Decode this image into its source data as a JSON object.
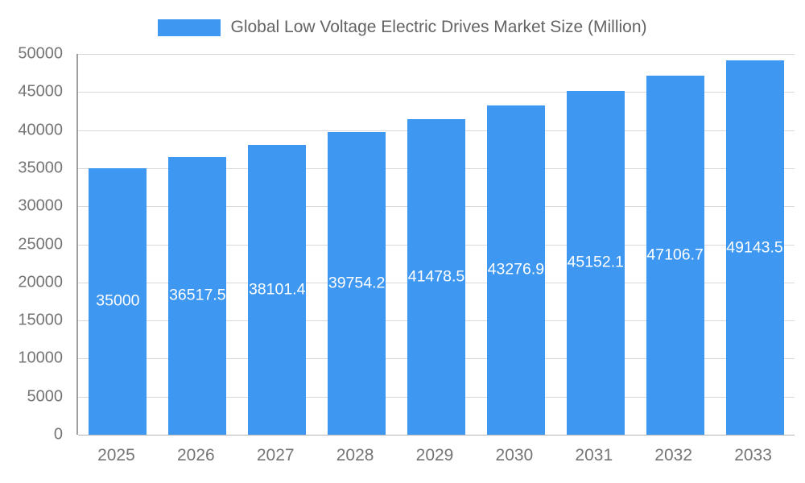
{
  "chart_data": {
    "type": "bar",
    "title": "Global Low Voltage Electric Drives Market Size (Million)",
    "categories": [
      "2025",
      "2026",
      "2027",
      "2028",
      "2029",
      "2030",
      "2031",
      "2032",
      "2033"
    ],
    "values": [
      35000,
      36517.5,
      38101.4,
      39754.2,
      41478.5,
      43276.9,
      45152.1,
      47106.7,
      49143.5
    ],
    "labels": [
      "35000",
      "36517.5",
      "38101.4",
      "39754.2",
      "41478.5",
      "43276.9",
      "45152.1",
      "47106.7",
      "49143.5"
    ],
    "xlabel": "",
    "ylabel": "",
    "ylim": [
      0,
      50000
    ],
    "ytick_step": 5000,
    "grid": true,
    "legend_position": "top",
    "bar_color": "#3e97f0",
    "label_color": "#ffffff",
    "axis_text_color": "#757575",
    "title_color": "#636363",
    "bar_width_pct": 8.1
  }
}
